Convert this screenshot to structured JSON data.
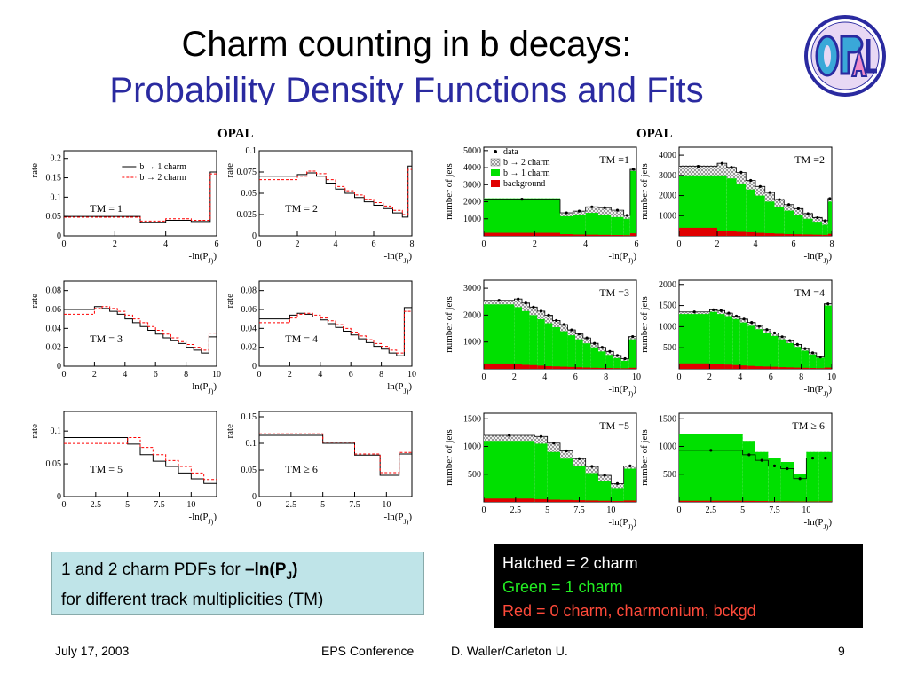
{
  "slide": {
    "title_line1": "Charm counting in b decays:",
    "title_line2": "Probability Density Functions and Fits",
    "colors": {
      "title2": "#2a2aa0",
      "green": "#00e000",
      "red": "#e00000",
      "pdf_b2": "#ff0000"
    },
    "left_group_label": "OPAL",
    "right_group_label": "OPAL",
    "logo_text": "OPAL",
    "caption_left": {
      "text1": "1 and 2 charm PDFs for ",
      "bold_main": "–ln(P",
      "bold_sub": "J",
      "bold_end": ")",
      "line2": "for different track multiplicities (TM)"
    },
    "caption_right": {
      "line1": "Hatched = 2 charm",
      "line2": "Green = 1 charm",
      "line3": "Red  = 0 charm, charmonium, bckgd"
    },
    "footer": {
      "date": "July 17, 2003",
      "conference": "EPS Conference",
      "author": "D. Waller/Carleton U.",
      "page": "9"
    }
  },
  "chart_data": [
    {
      "type": "line",
      "panel": "pdf-tm1",
      "annotation": "TM =  1",
      "ylabel": "rate",
      "xlabel": "-ln(P_J)",
      "xlim": [
        0,
        6
      ],
      "ylim": [
        0,
        0.22
      ],
      "xticks": [
        0,
        2,
        4,
        6
      ],
      "yticks": [
        0,
        0.05,
        0.1,
        0.15,
        0.2
      ],
      "ytick_labels": [
        "0",
        "0.05",
        "0.1",
        "0.15",
        "0.2"
      ],
      "legend": [
        "b → 1 charm",
        "b → 2 charm"
      ],
      "x": [
        0,
        3,
        4,
        5,
        5.75,
        6
      ],
      "series": [
        {
          "name": "b → 1 charm",
          "values": [
            0.05,
            0.035,
            0.04,
            0.037,
            0.165,
            0.165
          ]
        },
        {
          "name": "b → 2 charm",
          "values": [
            0.048,
            0.038,
            0.044,
            0.04,
            0.16,
            0.16
          ]
        }
      ]
    },
    {
      "type": "line",
      "panel": "pdf-tm2",
      "annotation": "TM =  2",
      "ylabel": "rate",
      "xlabel": "-ln(P_J)",
      "xlim": [
        0,
        8
      ],
      "ylim": [
        0,
        0.1
      ],
      "xticks": [
        0,
        2,
        4,
        6,
        8
      ],
      "yticks": [
        0,
        0.025,
        0.05,
        0.075,
        0.1
      ],
      "ytick_labels": [
        "0",
        "0.025",
        "0.05",
        "0.075",
        "0.1"
      ],
      "x": [
        0,
        2,
        2.5,
        3,
        3.5,
        4,
        4.5,
        5,
        5.5,
        6,
        6.5,
        7,
        7.5,
        7.8,
        8
      ],
      "series": [
        {
          "name": "b → 1 charm",
          "values": [
            0.07,
            0.072,
            0.074,
            0.07,
            0.062,
            0.055,
            0.05,
            0.045,
            0.04,
            0.036,
            0.032,
            0.027,
            0.022,
            0.082,
            0.082
          ]
        },
        {
          "name": "b → 2 charm",
          "values": [
            0.066,
            0.07,
            0.076,
            0.073,
            0.066,
            0.058,
            0.053,
            0.048,
            0.043,
            0.039,
            0.035,
            0.03,
            0.025,
            0.078,
            0.078
          ]
        }
      ]
    },
    {
      "type": "line",
      "panel": "pdf-tm3",
      "annotation": "TM =  3",
      "ylabel": "rate",
      "xlabel": "-ln(P_J)",
      "xlim": [
        0,
        10
      ],
      "ylim": [
        0,
        0.09
      ],
      "xticks": [
        0,
        2,
        4,
        6,
        8,
        10
      ],
      "yticks": [
        0,
        0.02,
        0.04,
        0.06,
        0.08
      ],
      "ytick_labels": [
        "0",
        "0.02",
        "0.04",
        "0.06",
        "0.08"
      ],
      "x": [
        0,
        2,
        2.5,
        3,
        3.5,
        4,
        4.5,
        5,
        5.5,
        6,
        6.5,
        7,
        7.5,
        8,
        8.5,
        9,
        9.5,
        10
      ],
      "series": [
        {
          "name": "b → 1 charm",
          "values": [
            0.06,
            0.063,
            0.061,
            0.058,
            0.055,
            0.05,
            0.046,
            0.042,
            0.038,
            0.034,
            0.03,
            0.027,
            0.024,
            0.02,
            0.017,
            0.014,
            0.031,
            0.031
          ]
        },
        {
          "name": "b → 2 charm",
          "values": [
            0.055,
            0.061,
            0.063,
            0.061,
            0.058,
            0.054,
            0.05,
            0.046,
            0.042,
            0.038,
            0.034,
            0.03,
            0.026,
            0.023,
            0.02,
            0.017,
            0.035,
            0.035
          ]
        }
      ]
    },
    {
      "type": "line",
      "panel": "pdf-tm4",
      "annotation": "TM =  4",
      "ylabel": "rate",
      "xlabel": "-ln(P_J)",
      "xlim": [
        0,
        10
      ],
      "ylim": [
        0,
        0.09
      ],
      "xticks": [
        0,
        2,
        4,
        6,
        8,
        10
      ],
      "yticks": [
        0,
        0.02,
        0.04,
        0.06,
        0.08
      ],
      "ytick_labels": [
        "0",
        "0.02",
        "0.04",
        "0.06",
        "0.08"
      ],
      "x": [
        0,
        2,
        2.5,
        3,
        3.5,
        4,
        4.5,
        5,
        5.5,
        6,
        6.5,
        7,
        7.5,
        8,
        8.5,
        9,
        9.5,
        10
      ],
      "series": [
        {
          "name": "b → 1 charm",
          "values": [
            0.05,
            0.054,
            0.056,
            0.055,
            0.052,
            0.049,
            0.045,
            0.041,
            0.037,
            0.033,
            0.029,
            0.025,
            0.021,
            0.018,
            0.014,
            0.011,
            0.062,
            0.062
          ]
        },
        {
          "name": "b → 2 charm",
          "values": [
            0.046,
            0.051,
            0.055,
            0.056,
            0.054,
            0.051,
            0.048,
            0.044,
            0.04,
            0.036,
            0.032,
            0.028,
            0.024,
            0.021,
            0.017,
            0.014,
            0.058,
            0.058
          ]
        }
      ]
    },
    {
      "type": "line",
      "panel": "pdf-tm5",
      "annotation": "TM =  5",
      "ylabel": "rate",
      "xlabel": "-ln(P_J)",
      "xlim": [
        0,
        12
      ],
      "ylim": [
        0,
        0.13
      ],
      "xticks": [
        0,
        2.5,
        5,
        7.5,
        10
      ],
      "yticks": [
        0,
        0.05,
        0.1
      ],
      "ytick_labels": [
        "0",
        "0.05",
        "0.1"
      ],
      "x": [
        0,
        5,
        6,
        7,
        8,
        9,
        10,
        11,
        12
      ],
      "series": [
        {
          "name": "b → 1 charm",
          "values": [
            0.09,
            0.08,
            0.064,
            0.054,
            0.046,
            0.036,
            0.027,
            0.02,
            0.036
          ]
        },
        {
          "name": "b → 2 charm",
          "values": [
            0.081,
            0.09,
            0.075,
            0.064,
            0.055,
            0.046,
            0.036,
            0.026,
            0.04
          ]
        }
      ]
    },
    {
      "type": "line",
      "panel": "pdf-tm6",
      "annotation": "TM ≥ 6",
      "ylabel": "rate",
      "xlabel": "-ln(P_J)",
      "xlim": [
        0,
        12
      ],
      "ylim": [
        0,
        0.16
      ],
      "xticks": [
        0,
        2.5,
        5,
        7.5,
        10
      ],
      "yticks": [
        0,
        0.05,
        0.1,
        0.15
      ],
      "ytick_labels": [
        "0",
        "0.05",
        "0.1",
        "0.15"
      ],
      "x": [
        0,
        5,
        7.5,
        9.5,
        11,
        12
      ],
      "series": [
        {
          "name": "b → 1 charm",
          "values": [
            0.115,
            0.1,
            0.078,
            0.04,
            0.08,
            0.08
          ]
        },
        {
          "name": "b → 2 charm",
          "values": [
            0.118,
            0.102,
            0.08,
            0.045,
            0.083,
            0.083
          ]
        }
      ]
    },
    {
      "type": "bar",
      "panel": "fit-tm1",
      "annotation": "TM =1",
      "ylabel": "number of jets",
      "xlabel": "-ln(P_J)",
      "xlim": [
        0,
        6
      ],
      "ylim": [
        0,
        5200
      ],
      "xticks": [
        0,
        2,
        4,
        6
      ],
      "yticks": [
        1000,
        2000,
        3000,
        4000,
        5000
      ],
      "ytick_labels": [
        "1000",
        "2000",
        "3000",
        "4000",
        "5000"
      ],
      "legend": [
        "data",
        "b → 2 charm",
        "b → 1 charm",
        "background"
      ],
      "bins": [
        0,
        3,
        3.5,
        4,
        4.5,
        5,
        5.5,
        5.75,
        6
      ],
      "background": [
        180,
        100,
        80,
        70,
        60,
        50,
        40,
        150
      ],
      "one_charm": [
        2200,
        1150,
        1250,
        1350,
        1250,
        1100,
        1000,
        3800
      ],
      "total": [
        2200,
        1300,
        1450,
        1650,
        1600,
        1450,
        1200,
        4000
      ],
      "data": [
        2150,
        1350,
        1450,
        1700,
        1650,
        1500,
        1200,
        3900
      ]
    },
    {
      "type": "bar",
      "panel": "fit-tm2",
      "annotation": "TM =2",
      "ylabel": "number of jets",
      "xlabel": "-ln(P_J)",
      "xlim": [
        0,
        8
      ],
      "ylim": [
        0,
        4400
      ],
      "xticks": [
        0,
        2,
        4,
        6,
        8
      ],
      "yticks": [
        1000,
        2000,
        3000,
        4000
      ],
      "ytick_labels": [
        "1000",
        "2000",
        "3000",
        "4000"
      ],
      "bins": [
        0,
        2,
        2.5,
        3,
        3.5,
        4,
        4.5,
        5,
        5.5,
        6,
        6.5,
        7,
        7.5,
        7.8,
        8
      ],
      "background": [
        400,
        250,
        250,
        200,
        180,
        150,
        130,
        110,
        90,
        80,
        70,
        60,
        50,
        100
      ],
      "one_charm": [
        3000,
        3000,
        2850,
        2600,
        2300,
        2000,
        1700,
        1450,
        1250,
        1050,
        850,
        700,
        550,
        1700
      ],
      "total": [
        3500,
        3550,
        3450,
        3100,
        2750,
        2400,
        2100,
        1850,
        1550,
        1350,
        1150,
        950,
        800,
        1900
      ],
      "data": [
        3450,
        3600,
        3400,
        3150,
        2750,
        2450,
        2150,
        1800,
        1550,
        1350,
        1100,
        900,
        750,
        1850
      ]
    },
    {
      "type": "bar",
      "panel": "fit-tm3",
      "annotation": "TM =3",
      "ylabel": "number of jets",
      "xlabel": "-ln(P_J)",
      "xlim": [
        0,
        10
      ],
      "ylim": [
        0,
        3300
      ],
      "xticks": [
        0,
        2,
        4,
        6,
        8,
        10
      ],
      "yticks": [
        1000,
        2000,
        3000
      ],
      "ytick_labels": [
        "1000",
        "2000",
        "3000"
      ],
      "bins": [
        0,
        2,
        2.5,
        3,
        3.5,
        4,
        4.5,
        5,
        5.5,
        6,
        6.5,
        7,
        7.5,
        8,
        8.5,
        9,
        9.5,
        10
      ],
      "background": [
        200,
        180,
        150,
        140,
        120,
        100,
        90,
        80,
        70,
        60,
        50,
        40,
        35,
        30,
        25,
        20,
        40
      ],
      "one_charm": [
        2400,
        2300,
        2150,
        2000,
        1850,
        1700,
        1550,
        1400,
        1250,
        1100,
        950,
        800,
        650,
        520,
        400,
        300,
        1100
      ],
      "total": [
        2550,
        2550,
        2450,
        2300,
        2150,
        2000,
        1800,
        1650,
        1450,
        1300,
        1150,
        950,
        800,
        650,
        500,
        400,
        1200
      ],
      "data": [
        2550,
        2600,
        2450,
        2300,
        2150,
        2000,
        1800,
        1650,
        1450,
        1300,
        1150,
        950,
        800,
        650,
        500,
        380,
        1200
      ]
    },
    {
      "type": "bar",
      "panel": "fit-tm4",
      "annotation": "TM =4",
      "ylabel": "number of jets",
      "xlabel": "-ln(P_J)",
      "xlim": [
        0,
        10
      ],
      "ylim": [
        0,
        2100
      ],
      "xticks": [
        0,
        2,
        4,
        6,
        8,
        10
      ],
      "yticks": [
        500,
        1000,
        1500,
        2000
      ],
      "ytick_labels": [
        "500",
        "1000",
        "1500",
        "2000"
      ],
      "bins": [
        0,
        2,
        2.5,
        3,
        3.5,
        4,
        4.5,
        5,
        5.5,
        6,
        6.5,
        7,
        7.5,
        8,
        8.5,
        9,
        9.5,
        10
      ],
      "background": [
        130,
        120,
        110,
        100,
        90,
        80,
        70,
        60,
        55,
        50,
        40,
        35,
        30,
        25,
        20,
        15,
        30
      ],
      "one_charm": [
        1300,
        1350,
        1300,
        1250,
        1180,
        1100,
        1020,
        940,
        860,
        780,
        700,
        610,
        520,
        430,
        340,
        260,
        1500
      ],
      "total": [
        1350,
        1400,
        1380,
        1330,
        1250,
        1180,
        1100,
        1020,
        930,
        850,
        760,
        670,
        580,
        480,
        380,
        280,
        1550
      ],
      "data": [
        1350,
        1400,
        1380,
        1320,
        1250,
        1180,
        1100,
        1010,
        930,
        850,
        760,
        670,
        580,
        480,
        380,
        280,
        1540
      ]
    },
    {
      "type": "bar",
      "panel": "fit-tm5",
      "annotation": "TM =5",
      "ylabel": "number of jets",
      "xlabel": "-ln(P_J)",
      "xlim": [
        0,
        12
      ],
      "ylim": [
        0,
        1600
      ],
      "xticks": [
        0,
        2.5,
        5,
        7.5,
        10
      ],
      "yticks": [
        500,
        1000,
        1500
      ],
      "ytick_labels": [
        "500",
        "1000",
        "1500"
      ],
      "bins": [
        0,
        4,
        5,
        6,
        7,
        8,
        9,
        10,
        11,
        12
      ],
      "background": [
        60,
        50,
        40,
        35,
        30,
        25,
        20,
        15,
        25
      ],
      "one_charm": [
        1100,
        1050,
        900,
        780,
        650,
        520,
        380,
        250,
        600
      ],
      "total": [
        1200,
        1180,
        1050,
        920,
        780,
        640,
        480,
        330,
        650
      ],
      "data": [
        1200,
        1180,
        1060,
        920,
        780,
        640,
        480,
        330,
        650
      ]
    },
    {
      "type": "bar",
      "panel": "fit-tm6",
      "annotation": "TM ≥ 6",
      "ylabel": "number of jets",
      "xlabel": "-ln(P_J)",
      "xlim": [
        0,
        12
      ],
      "ylim": [
        0,
        1600
      ],
      "xticks": [
        0,
        2.5,
        5,
        7.5,
        10
      ],
      "yticks": [
        500,
        1000,
        1500
      ],
      "ytick_labels": [
        "500",
        "1000",
        "1500"
      ],
      "bins": [
        0,
        5,
        6,
        7,
        8,
        9,
        10,
        11,
        12
      ],
      "background": [
        20,
        18,
        15,
        12,
        10,
        8,
        8,
        10
      ],
      "one_charm": [
        1230,
        1100,
        900,
        800,
        720,
        500,
        900,
        900
      ],
      "total": [
        1230,
        1100,
        900,
        800,
        720,
        500,
        900,
        900
      ],
      "data": [
        930,
        850,
        750,
        650,
        600,
        420,
        790,
        790
      ]
    }
  ]
}
